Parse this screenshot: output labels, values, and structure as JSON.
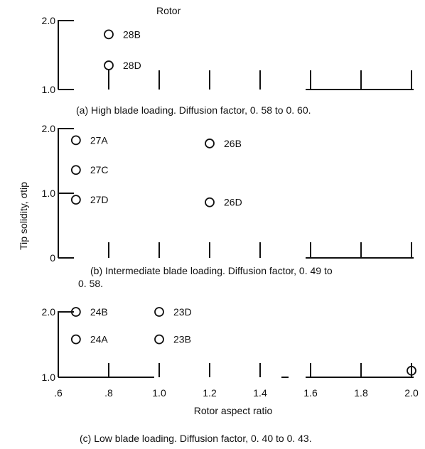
{
  "figure": {
    "ylabel": "Tip solidity, σtip",
    "xlabel": "Rotor aspect ratio",
    "legend_header": "Rotor",
    "caption_a": "(a) High blade loading.   Diffusion factor, 0. 58 to 0. 60.",
    "caption_b_line1": "(b) Intermediate blade loading.   Diffusion factor, 0. 49 to",
    "caption_b_line2": "0. 58.",
    "caption_c": "(c) Low blade loading.   Diffusion factor, 0. 40 to 0. 43."
  },
  "chart_data": [
    {
      "type": "scatter",
      "title": "(a) High blade loading.   Diffusion factor, 0. 58 to 0. 60.",
      "xlabel": "Rotor aspect ratio",
      "ylabel": "Tip solidity, σtip",
      "xlim": [
        0.6,
        2.0
      ],
      "ylim": [
        1.0,
        2.0
      ],
      "yticks": [
        "1.0",
        "2.0"
      ],
      "points": [
        {
          "x": 0.8,
          "y": 1.8,
          "label": "28B"
        },
        {
          "x": 0.8,
          "y": 1.35,
          "label": "28D"
        }
      ]
    },
    {
      "type": "scatter",
      "title": "(b) Intermediate blade loading.   Diffusion factor, 0. 49 to 0. 58.",
      "xlabel": "Rotor aspect ratio",
      "ylabel": "Tip solidity, σtip",
      "xlim": [
        0.6,
        2.0
      ],
      "ylim": [
        0,
        2.0
      ],
      "yticks": [
        "0",
        "1.0",
        "2.0"
      ],
      "points": [
        {
          "x": 0.67,
          "y": 1.82,
          "label": "27A"
        },
        {
          "x": 0.67,
          "y": 1.36,
          "label": "27C"
        },
        {
          "x": 0.67,
          "y": 0.9,
          "label": "27D"
        },
        {
          "x": 1.2,
          "y": 1.77,
          "label": "26B"
        },
        {
          "x": 1.2,
          "y": 0.86,
          "label": "26D"
        }
      ]
    },
    {
      "type": "scatter",
      "title": "(c) Low blade loading.   Diffusion factor, 0. 40 to 0. 43.",
      "xlabel": "Rotor aspect ratio",
      "ylabel": "Tip solidity, σtip",
      "xlim": [
        0.6,
        2.0
      ],
      "ylim": [
        1.0,
        2.0
      ],
      "yticks": [
        "1.0",
        "2.0"
      ],
      "xticks": [
        ".6",
        ".8",
        "1.0",
        "1.2",
        "1.4",
        "1.6",
        "1.8",
        "2.0"
      ],
      "points": [
        {
          "x": 0.67,
          "y": 2.0,
          "label": "24B"
        },
        {
          "x": 0.67,
          "y": 1.58,
          "label": "24A"
        },
        {
          "x": 1.0,
          "y": 2.0,
          "label": "23D"
        },
        {
          "x": 1.0,
          "y": 1.58,
          "label": "23B"
        },
        {
          "x": 2.0,
          "y": 1.1,
          "label": ""
        }
      ]
    }
  ]
}
